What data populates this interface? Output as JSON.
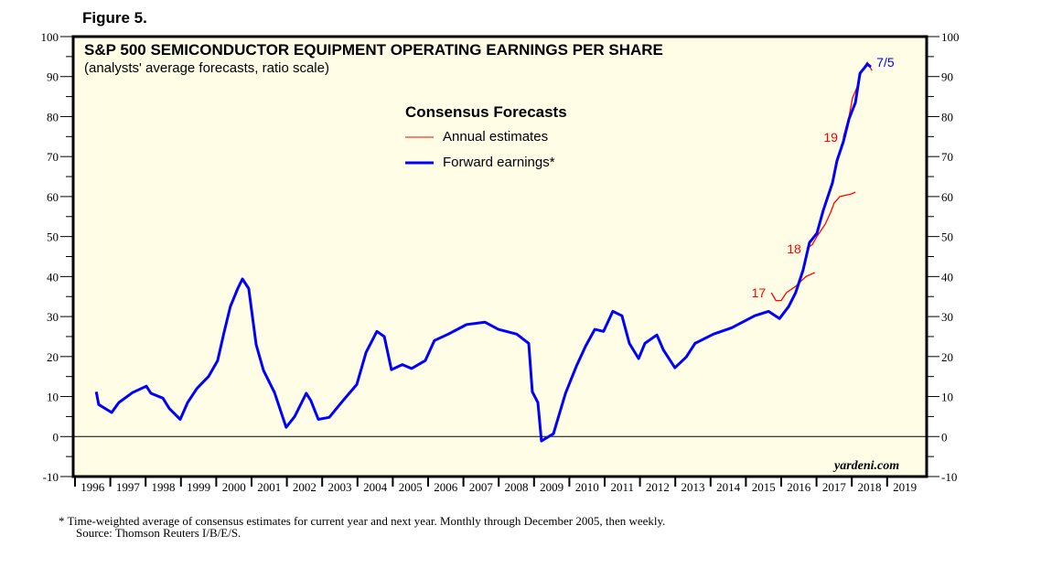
{
  "figure_label": "Figure 5.",
  "footnote": "*  Time-weighted average of consensus estimates for current year and next year. Monthly through December 2005, then weekly.",
  "source": "Source: Thomson Reuters I/B/E/S.",
  "chart_data": {
    "type": "line",
    "title": "S&P 500 SEMICONDUCTOR EQUIPMENT OPERATING EARNINGS PER SHARE",
    "subtitle": "(analysts' average forecasts, ratio scale)",
    "legend_title": "Consensus Forecasts",
    "legend_placement": "top-center",
    "watermark": "yardeni.com",
    "ylim": [
      -10,
      100
    ],
    "yticks": [
      -10,
      0,
      10,
      20,
      30,
      40,
      50,
      60,
      70,
      80,
      90,
      100
    ],
    "xlim": [
      1996,
      2020
    ],
    "xticks": [
      "1996",
      "1997",
      "1998",
      "1999",
      "2000",
      "2001",
      "2002",
      "2003",
      "2004",
      "2005",
      "2006",
      "2007",
      "2008",
      "2009",
      "2010",
      "2011",
      "2012",
      "2013",
      "2014",
      "2015",
      "2016",
      "2017",
      "2018",
      "2019"
    ],
    "colors": {
      "annual": "#ff0000",
      "forward": "#0000ff",
      "background": "#fffde6"
    },
    "series": [
      {
        "name": "Forward earnings*",
        "color": "#0000ff",
        "end_label": "7/5",
        "points": [
          [
            1996.6,
            11.2
          ],
          [
            1996.67,
            8
          ],
          [
            1997.04,
            6
          ],
          [
            1997.24,
            8.5
          ],
          [
            1997.63,
            11
          ],
          [
            1998.02,
            12.6
          ],
          [
            1998.15,
            10.8
          ],
          [
            1998.49,
            9.6
          ],
          [
            1998.67,
            7
          ],
          [
            1998.98,
            4.3
          ],
          [
            1999.19,
            8.5
          ],
          [
            1999.45,
            12
          ],
          [
            1999.78,
            15
          ],
          [
            2000.04,
            19
          ],
          [
            2000.22,
            26
          ],
          [
            2000.4,
            32.5
          ],
          [
            2000.61,
            37
          ],
          [
            2000.74,
            39.4
          ],
          [
            2000.92,
            37
          ],
          [
            2001.13,
            23
          ],
          [
            2001.34,
            16.5
          ],
          [
            2001.65,
            11
          ],
          [
            2001.98,
            2.3
          ],
          [
            2002.22,
            5
          ],
          [
            2002.55,
            10.8
          ],
          [
            2002.68,
            9
          ],
          [
            2002.89,
            4.3
          ],
          [
            2003.2,
            4.8
          ],
          [
            2003.59,
            9
          ],
          [
            2003.98,
            13
          ],
          [
            2004.24,
            21
          ],
          [
            2004.55,
            26.3
          ],
          [
            2004.76,
            25
          ],
          [
            2004.96,
            16.7
          ],
          [
            2005.27,
            18
          ],
          [
            2005.53,
            17
          ],
          [
            2005.92,
            19
          ],
          [
            2006.18,
            24
          ],
          [
            2006.57,
            25.6
          ],
          [
            2007.09,
            28
          ],
          [
            2007.61,
            28.6
          ],
          [
            2007.99,
            26.8
          ],
          [
            2008.51,
            25.6
          ],
          [
            2008.85,
            23.3
          ],
          [
            2008.95,
            11.2
          ],
          [
            2009.11,
            8.5
          ],
          [
            2009.21,
            -1.1
          ],
          [
            2009.55,
            0.7
          ],
          [
            2009.89,
            10.8
          ],
          [
            2010.2,
            17.6
          ],
          [
            2010.46,
            22.6
          ],
          [
            2010.72,
            26.8
          ],
          [
            2010.97,
            26.3
          ],
          [
            2011.23,
            31.3
          ],
          [
            2011.49,
            30.2
          ],
          [
            2011.7,
            23.3
          ],
          [
            2011.96,
            19.5
          ],
          [
            2012.14,
            23.3
          ],
          [
            2012.48,
            25.4
          ],
          [
            2012.66,
            21.7
          ],
          [
            2012.99,
            17.2
          ],
          [
            2013.31,
            19.9
          ],
          [
            2013.56,
            23.3
          ],
          [
            2014.08,
            25.6
          ],
          [
            2014.6,
            27.2
          ],
          [
            2015.25,
            30.2
          ],
          [
            2015.64,
            31.3
          ],
          [
            2015.95,
            29.5
          ],
          [
            2016.21,
            32.5
          ],
          [
            2016.41,
            36
          ],
          [
            2016.62,
            41.6
          ],
          [
            2016.8,
            48.5
          ],
          [
            2017.01,
            50.8
          ],
          [
            2017.19,
            56.5
          ],
          [
            2017.45,
            63.4
          ],
          [
            2017.58,
            69
          ],
          [
            2017.76,
            73.7
          ],
          [
            2017.92,
            79.4
          ],
          [
            2018.1,
            83.5
          ],
          [
            2018.23,
            90.8
          ],
          [
            2018.44,
            93.1
          ],
          [
            2018.54,
            92.4
          ]
        ]
      },
      {
        "name": "Annual estimates",
        "color": "#ff0000",
        "label": "17",
        "points": [
          [
            2015.72,
            36
          ],
          [
            2015.85,
            34
          ],
          [
            2016.0,
            34
          ],
          [
            2016.15,
            36
          ],
          [
            2016.4,
            37.5
          ],
          [
            2016.7,
            40
          ],
          [
            2016.95,
            41
          ]
        ]
      },
      {
        "name": "Annual estimates",
        "color": "#ff0000",
        "label": "18",
        "points": [
          [
            2016.72,
            47
          ],
          [
            2016.88,
            48
          ],
          [
            2017.01,
            50
          ],
          [
            2017.24,
            53
          ],
          [
            2017.4,
            56
          ],
          [
            2017.5,
            58.4
          ],
          [
            2017.66,
            60
          ],
          [
            2017.97,
            60.6
          ],
          [
            2018.1,
            61.1
          ]
        ]
      },
      {
        "name": "Annual estimates",
        "color": "#ff0000",
        "label": "19",
        "points": [
          [
            2017.76,
            74.8
          ],
          [
            2017.92,
            80
          ],
          [
            2018.02,
            84.7
          ],
          [
            2018.15,
            87.4
          ],
          [
            2018.28,
            91.5
          ],
          [
            2018.44,
            93.6
          ],
          [
            2018.57,
            91.5
          ]
        ]
      }
    ]
  }
}
